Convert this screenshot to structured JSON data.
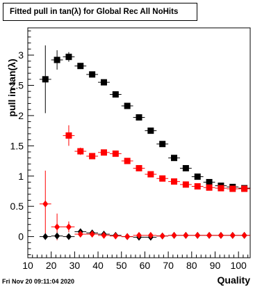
{
  "chart_data": {
    "type": "scatter",
    "title": "Fitted pull in tan(λ) for Global Rec All NoHits",
    "xlabel": "Quality",
    "ylabel": "pull in tan(λ)",
    "xlim": [
      10,
      105
    ],
    "ylim": [
      -0.35,
      3.45
    ],
    "x_ticks": [
      10,
      20,
      30,
      40,
      50,
      60,
      70,
      80,
      90,
      100
    ],
    "y_ticks": [
      0,
      0.5,
      1,
      1.5,
      2,
      2.5,
      3
    ],
    "x_tick_labels": [
      "10",
      "20",
      "30",
      "40",
      "50",
      "60",
      "70",
      "80",
      "90",
      "100"
    ],
    "y_tick_labels": [
      "0",
      "0.5",
      "1",
      "1.5",
      "2",
      "2.5",
      "3"
    ],
    "grid": false,
    "legend": "none",
    "series": [
      {
        "color": "#000000",
        "marker": "square",
        "points": [
          {
            "x": 17.5,
            "y": 2.6,
            "err": 0.56
          },
          {
            "x": 22.5,
            "y": 2.92,
            "err": 0.16
          },
          {
            "x": 27.5,
            "y": 2.97,
            "err": 0.08
          },
          {
            "x": 32.5,
            "y": 2.82,
            "err": 0.05
          },
          {
            "x": 37.5,
            "y": 2.68,
            "err": 0.03
          },
          {
            "x": 42.5,
            "y": 2.55,
            "err": 0.03
          },
          {
            "x": 47.5,
            "y": 2.35,
            "err": 0.03
          },
          {
            "x": 52.5,
            "y": 2.16,
            "err": 0.02
          },
          {
            "x": 57.5,
            "y": 1.97,
            "err": 0.02
          },
          {
            "x": 62.5,
            "y": 1.75,
            "err": 0.02
          },
          {
            "x": 67.5,
            "y": 1.53,
            "err": 0.02
          },
          {
            "x": 72.5,
            "y": 1.3,
            "err": 0.02
          },
          {
            "x": 77.5,
            "y": 1.13,
            "err": 0.02
          },
          {
            "x": 82.5,
            "y": 0.99,
            "err": 0.02
          },
          {
            "x": 87.5,
            "y": 0.9,
            "err": 0.01
          },
          {
            "x": 92.5,
            "y": 0.84,
            "err": 0.01
          },
          {
            "x": 97.5,
            "y": 0.82,
            "err": 0.01
          },
          {
            "x": 102.5,
            "y": 0.8,
            "err": 0.01
          }
        ]
      },
      {
        "color": "#ff0000",
        "marker": "square",
        "points": [
          {
            "x": 27.5,
            "y": 1.67,
            "err": 0.17
          },
          {
            "x": 32.5,
            "y": 1.41,
            "err": 0.06
          },
          {
            "x": 37.5,
            "y": 1.33,
            "err": 0.04
          },
          {
            "x": 42.5,
            "y": 1.39,
            "err": 0.03
          },
          {
            "x": 47.5,
            "y": 1.37,
            "err": 0.03
          },
          {
            "x": 52.5,
            "y": 1.25,
            "err": 0.02
          },
          {
            "x": 57.5,
            "y": 1.13,
            "err": 0.02
          },
          {
            "x": 62.5,
            "y": 1.03,
            "err": 0.02
          },
          {
            "x": 67.5,
            "y": 0.96,
            "err": 0.02
          },
          {
            "x": 72.5,
            "y": 0.91,
            "err": 0.01
          },
          {
            "x": 77.5,
            "y": 0.86,
            "err": 0.01
          },
          {
            "x": 82.5,
            "y": 0.83,
            "err": 0.01
          },
          {
            "x": 87.5,
            "y": 0.81,
            "err": 0.01
          },
          {
            "x": 92.5,
            "y": 0.8,
            "err": 0.01
          },
          {
            "x": 97.5,
            "y": 0.79,
            "err": 0.01
          },
          {
            "x": 102.5,
            "y": 0.79,
            "err": 0.01
          }
        ]
      },
      {
        "color": "#000000",
        "marker": "diamond",
        "points": [
          {
            "x": 17.5,
            "y": 0.0,
            "err": 0.02
          },
          {
            "x": 22.5,
            "y": 0.01,
            "err": 0.02
          },
          {
            "x": 27.5,
            "y": 0.0,
            "err": 0.02
          },
          {
            "x": 32.5,
            "y": 0.08,
            "err": 0.02
          },
          {
            "x": 37.5,
            "y": 0.06,
            "err": 0.01
          },
          {
            "x": 42.5,
            "y": 0.04,
            "err": 0.01
          },
          {
            "x": 47.5,
            "y": 0.02,
            "err": 0.01
          },
          {
            "x": 52.5,
            "y": 0.0,
            "err": 0.01
          },
          {
            "x": 57.5,
            "y": -0.01,
            "err": 0.01
          },
          {
            "x": 62.5,
            "y": -0.01,
            "err": 0.01
          },
          {
            "x": 67.5,
            "y": 0.01,
            "err": 0.01
          },
          {
            "x": 72.5,
            "y": 0.02,
            "err": 0.01
          },
          {
            "x": 77.5,
            "y": 0.02,
            "err": 0.01
          },
          {
            "x": 82.5,
            "y": 0.02,
            "err": 0.01
          },
          {
            "x": 87.5,
            "y": 0.02,
            "err": 0.01
          },
          {
            "x": 92.5,
            "y": 0.02,
            "err": 0.01
          },
          {
            "x": 97.5,
            "y": 0.02,
            "err": 0.01
          },
          {
            "x": 102.5,
            "y": 0.02,
            "err": 0.01
          }
        ]
      },
      {
        "color": "#ff0000",
        "marker": "diamond",
        "points": [
          {
            "x": 17.5,
            "y": 0.54,
            "err": 0.55
          },
          {
            "x": 22.5,
            "y": 0.16,
            "err": 0.22
          },
          {
            "x": 27.5,
            "y": 0.16,
            "err": 0.09
          },
          {
            "x": 32.5,
            "y": 0.04,
            "err": 0.04
          },
          {
            "x": 37.5,
            "y": 0.04,
            "err": 0.03
          },
          {
            "x": 42.5,
            "y": 0.02,
            "err": 0.02
          },
          {
            "x": 47.5,
            "y": 0.01,
            "err": 0.02
          },
          {
            "x": 52.5,
            "y": 0.0,
            "err": 0.02
          },
          {
            "x": 57.5,
            "y": 0.02,
            "err": 0.01
          },
          {
            "x": 62.5,
            "y": 0.02,
            "err": 0.01
          },
          {
            "x": 67.5,
            "y": 0.01,
            "err": 0.01
          },
          {
            "x": 72.5,
            "y": 0.02,
            "err": 0.01
          },
          {
            "x": 77.5,
            "y": 0.02,
            "err": 0.01
          },
          {
            "x": 82.5,
            "y": 0.02,
            "err": 0.01
          },
          {
            "x": 87.5,
            "y": 0.02,
            "err": 0.01
          },
          {
            "x": 92.5,
            "y": 0.02,
            "err": 0.01
          },
          {
            "x": 97.5,
            "y": 0.02,
            "err": 0.01
          },
          {
            "x": 102.5,
            "y": 0.02,
            "err": 0.01
          }
        ]
      }
    ]
  },
  "footer": {
    "timestamp": "Fri Nov 20 09:11:04 2020"
  }
}
